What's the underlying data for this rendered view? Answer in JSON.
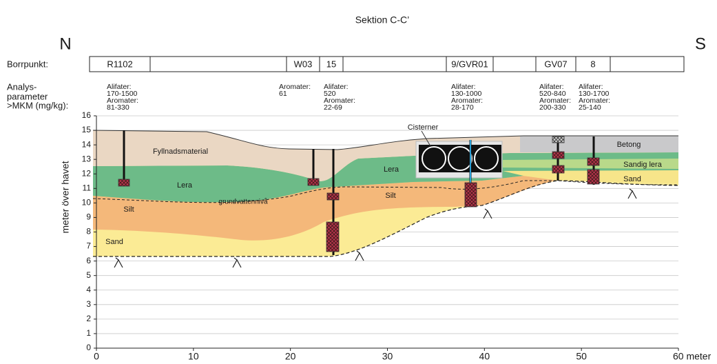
{
  "title": "Sektion C-C’",
  "compass": {
    "north": "N",
    "south": "S"
  },
  "row_labels": {
    "borrpunkt": "Borrpunkt:",
    "analysis": [
      "Analys-",
      "parameter",
      ">MKM (mg/kg):"
    ]
  },
  "boreholes": [
    {
      "label": "R1102",
      "analysis": [
        "Alifater:",
        "170-1500",
        "Aromater:",
        "81-330"
      ]
    },
    {
      "label": "W03",
      "analysis": [
        "Aromater:",
        "61"
      ]
    },
    {
      "label": "15",
      "analysis": [
        "Alifater:",
        "520",
        "Aromater:",
        "22-69"
      ]
    },
    {
      "label": "9/GVR01",
      "analysis": [
        "Alifater:",
        "130-1000",
        "Aromater:",
        "28-170"
      ]
    },
    {
      "label": "GV07",
      "analysis": [
        "Alifater:",
        "520-840",
        "Aromater:",
        "200-330"
      ]
    },
    {
      "label": "8",
      "analysis": [
        "Alifater:",
        "130-1700",
        "Aromater:",
        "25-140"
      ]
    }
  ],
  "layer_labels": [
    "Fyllnadsmaterial",
    "Lera",
    "grundvattennivå",
    "Silt",
    "Sand",
    "Lera",
    "Silt",
    "Cisterner",
    "Betong",
    "Sandig lera",
    "Sand"
  ],
  "axis": {
    "y_label": "meter över havet",
    "ylim": [
      0,
      16
    ],
    "yticks": [
      0,
      1,
      2,
      3,
      4,
      5,
      6,
      7,
      8,
      9,
      10,
      11,
      12,
      13,
      14,
      15,
      16
    ],
    "xlim": [
      0,
      60
    ],
    "xticks": [
      0,
      10,
      20,
      30,
      40,
      50,
      {
        "value": 60,
        "label": "60 meter"
      }
    ]
  }
}
